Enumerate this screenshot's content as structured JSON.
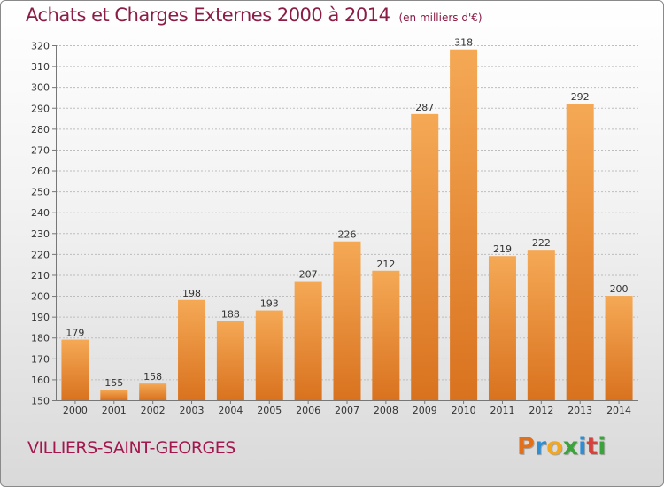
{
  "title": "Achats et Charges Externes 2000 à 2014",
  "unit": "(en milliers d'€)",
  "commune": "VILLIERS-SAINT-GEORGES",
  "logo": {
    "letters": [
      "P",
      "r",
      "o",
      "x",
      "i",
      "t",
      "i"
    ],
    "colors": [
      "#e0701c",
      "#2c8fd6",
      "#f2a71e",
      "#3aa33a",
      "#2c8fd6",
      "#d9423a",
      "#3aa33a"
    ]
  },
  "colors": {
    "bar_top": "#f5a955",
    "bar_bottom": "#d9721f",
    "title": "#8a1c46"
  },
  "chart_data": {
    "type": "bar",
    "categories": [
      "2000",
      "2001",
      "2002",
      "2003",
      "2004",
      "2005",
      "2006",
      "2007",
      "2008",
      "2009",
      "2010",
      "2011",
      "2012",
      "2013",
      "2014"
    ],
    "values": [
      179,
      155,
      158,
      198,
      188,
      193,
      207,
      226,
      212,
      287,
      318,
      219,
      222,
      292,
      200
    ],
    "ylim": [
      150,
      320
    ],
    "yticks": [
      150,
      160,
      170,
      180,
      190,
      200,
      210,
      220,
      230,
      240,
      250,
      260,
      270,
      280,
      290,
      300,
      310,
      320
    ],
    "grid": true,
    "title": "Achats et Charges Externes 2000 à 2014",
    "xlabel": "",
    "ylabel": ""
  }
}
